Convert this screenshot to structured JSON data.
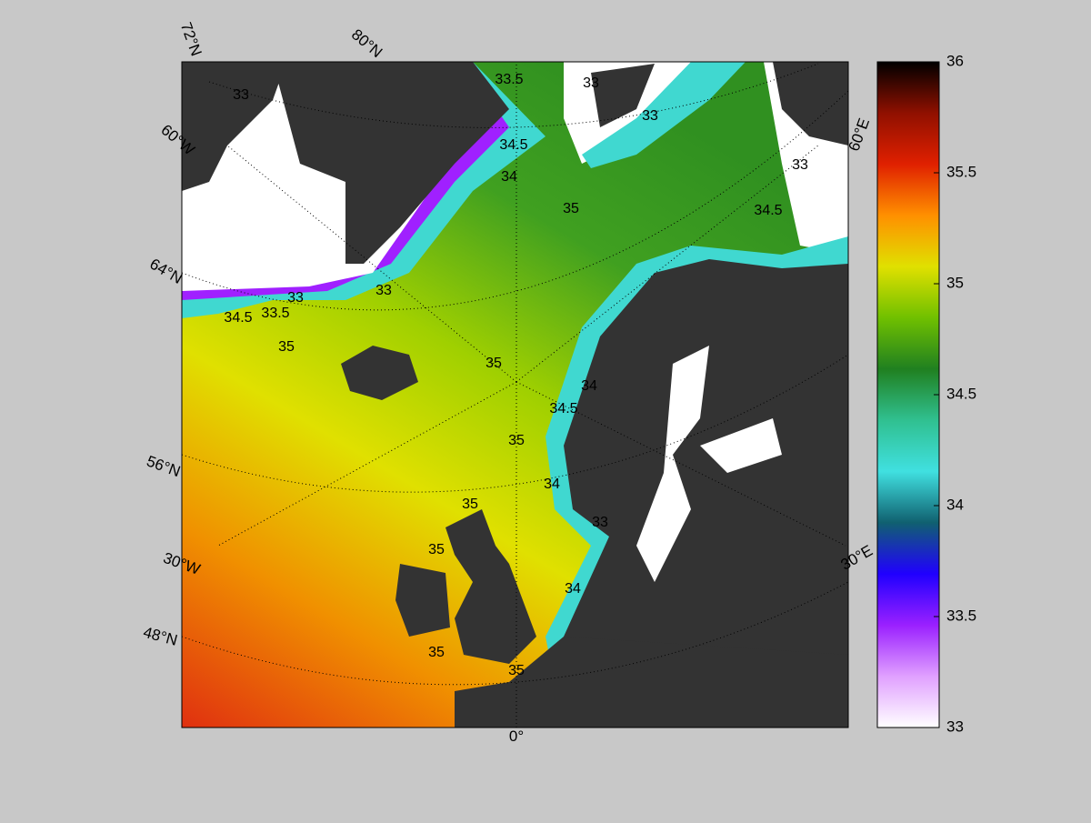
{
  "map": {
    "graticule_labels": [
      "72°N",
      "80°N",
      "60°W",
      "64°N",
      "56°N",
      "30°W",
      "48°N",
      "0°",
      "30°E",
      "60°E"
    ],
    "contour_labels": [
      33,
      33.5,
      33,
      33,
      34.5,
      34,
      35,
      34.5,
      33,
      33,
      33,
      34.5,
      33.5,
      35,
      35,
      34.5,
      34,
      35,
      34,
      35,
      35,
      34,
      35,
      35,
      33
    ],
    "colorbar": {
      "lim": [
        33,
        36
      ],
      "ticks": [
        33,
        33.5,
        34,
        34.5,
        35,
        35.5,
        36
      ],
      "colors": [
        "#ffffff",
        "#e0a0ff",
        "#9a20ff",
        "#2000ff",
        "#106070",
        "#40e0e0",
        "#30c090",
        "#208020",
        "#70c000",
        "#e0e000",
        "#ff9000",
        "#e02000",
        "#901000",
        "#000000"
      ]
    }
  }
}
